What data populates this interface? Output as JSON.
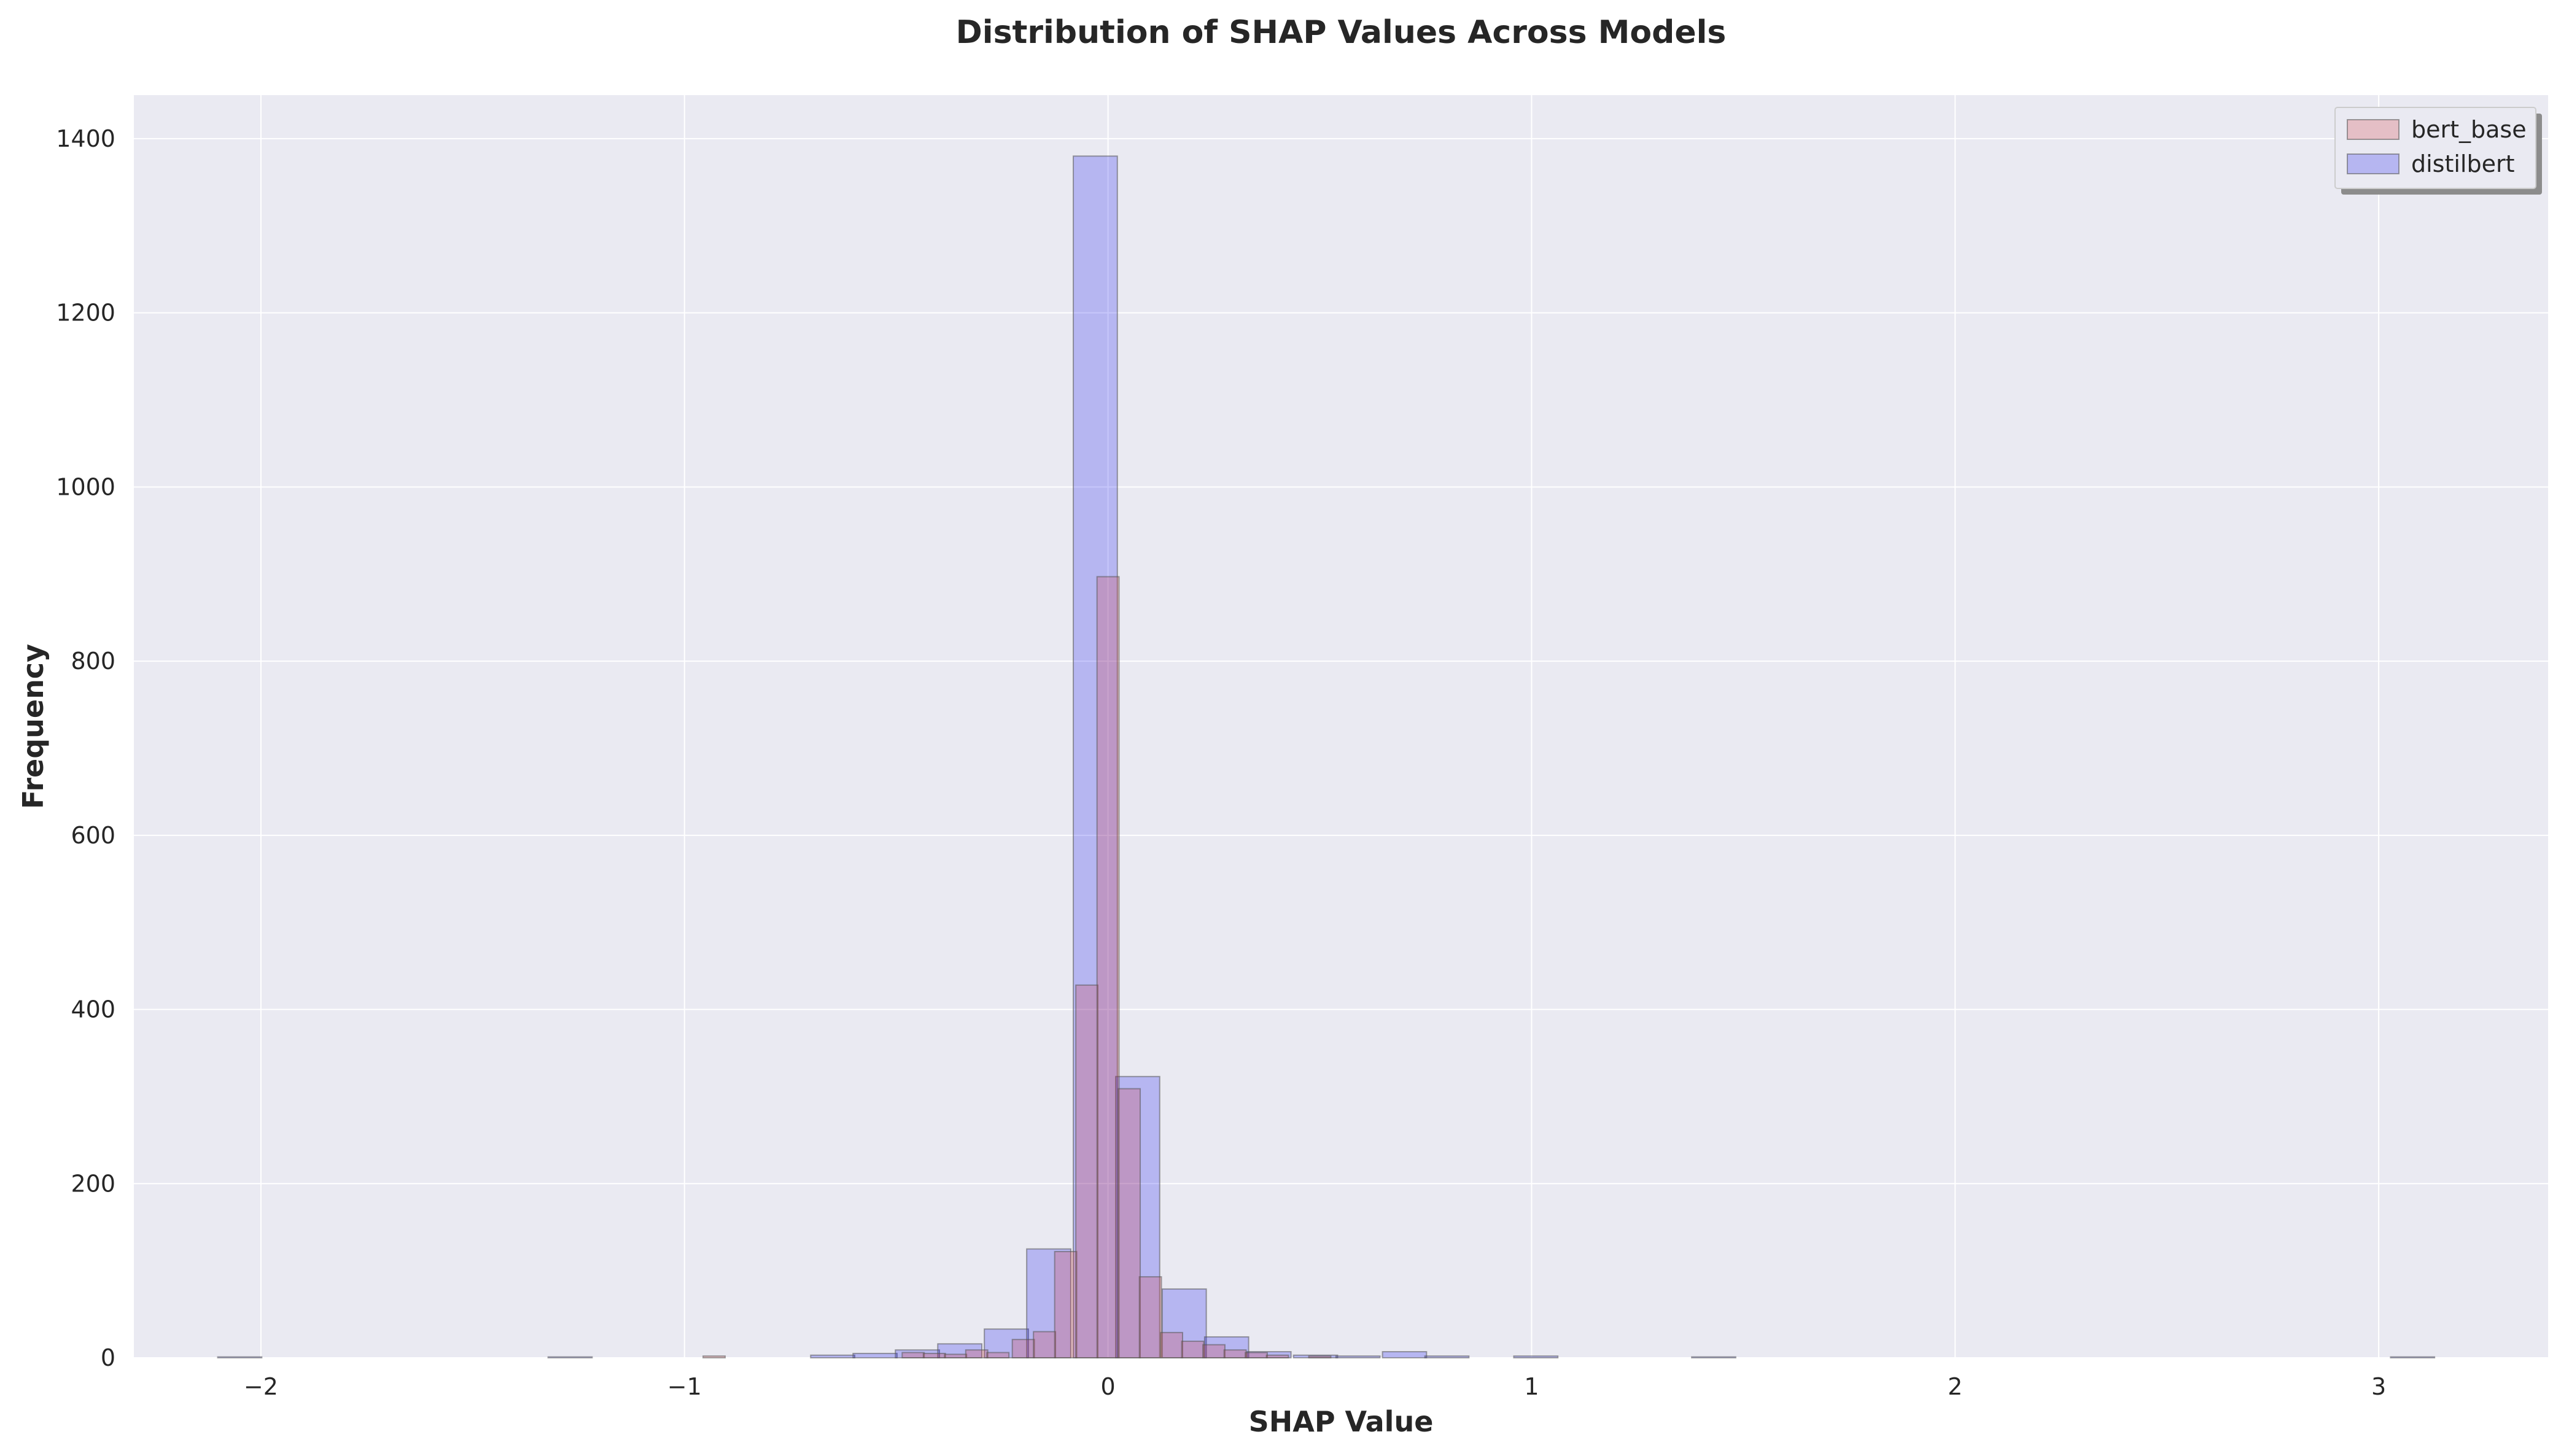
{
  "chart_data": {
    "type": "bar",
    "title": "Distribution of SHAP Values Across Models",
    "xlabel": "SHAP Value",
    "ylabel": "Frequency",
    "xlim": [
      -2.3,
      3.4
    ],
    "ylim": [
      0,
      1450
    ],
    "xticks": [
      -2,
      -1,
      0,
      1,
      2,
      3
    ],
    "xtick_labels": [
      "−2",
      "−1",
      "0",
      "1",
      "2",
      "3"
    ],
    "yticks": [
      0,
      200,
      400,
      600,
      800,
      1000,
      1200,
      1400
    ],
    "ytick_labels": [
      "0",
      "200",
      "400",
      "600",
      "800",
      "1000",
      "1200",
      "1400"
    ],
    "grid": true,
    "legend": "top-right",
    "background": "#eaeaf2",
    "series": [
      {
        "name": "distilbert",
        "color": "#0000ee",
        "bin_width": 0.104,
        "bins": [
          {
            "x": -2.05,
            "value": 1
          },
          {
            "x": -1.27,
            "value": 1
          },
          {
            "x": -0.65,
            "value": 3
          },
          {
            "x": -0.55,
            "value": 5
          },
          {
            "x": -0.45,
            "value": 9
          },
          {
            "x": -0.35,
            "value": 16
          },
          {
            "x": -0.24,
            "value": 33
          },
          {
            "x": -0.14,
            "value": 125
          },
          {
            "x": -0.03,
            "value": 1380
          },
          {
            "x": 0.07,
            "value": 323
          },
          {
            "x": 0.18,
            "value": 79
          },
          {
            "x": 0.28,
            "value": 24
          },
          {
            "x": 0.38,
            "value": 7
          },
          {
            "x": 0.49,
            "value": 3
          },
          {
            "x": 0.59,
            "value": 2
          },
          {
            "x": 0.7,
            "value": 7
          },
          {
            "x": 0.8,
            "value": 2
          },
          {
            "x": 1.01,
            "value": 2
          },
          {
            "x": 1.43,
            "value": 1
          },
          {
            "x": 3.08,
            "value": 1
          }
        ]
      },
      {
        "name": "bert_base",
        "color": "#d62728",
        "bin_width": 0.052,
        "bins": [
          {
            "x": -0.93,
            "value": 2
          },
          {
            "x": -0.46,
            "value": 6
          },
          {
            "x": -0.41,
            "value": 5
          },
          {
            "x": -0.36,
            "value": 4
          },
          {
            "x": -0.31,
            "value": 9
          },
          {
            "x": -0.26,
            "value": 6
          },
          {
            "x": -0.2,
            "value": 21
          },
          {
            "x": -0.15,
            "value": 30
          },
          {
            "x": -0.1,
            "value": 122
          },
          {
            "x": -0.05,
            "value": 428
          },
          {
            "x": 0.0,
            "value": 897
          },
          {
            "x": 0.05,
            "value": 309
          },
          {
            "x": 0.1,
            "value": 93
          },
          {
            "x": 0.15,
            "value": 29
          },
          {
            "x": 0.2,
            "value": 19
          },
          {
            "x": 0.25,
            "value": 15
          },
          {
            "x": 0.3,
            "value": 9
          },
          {
            "x": 0.35,
            "value": 6
          },
          {
            "x": 0.4,
            "value": 3
          },
          {
            "x": 0.5,
            "value": 2
          }
        ]
      }
    ]
  }
}
